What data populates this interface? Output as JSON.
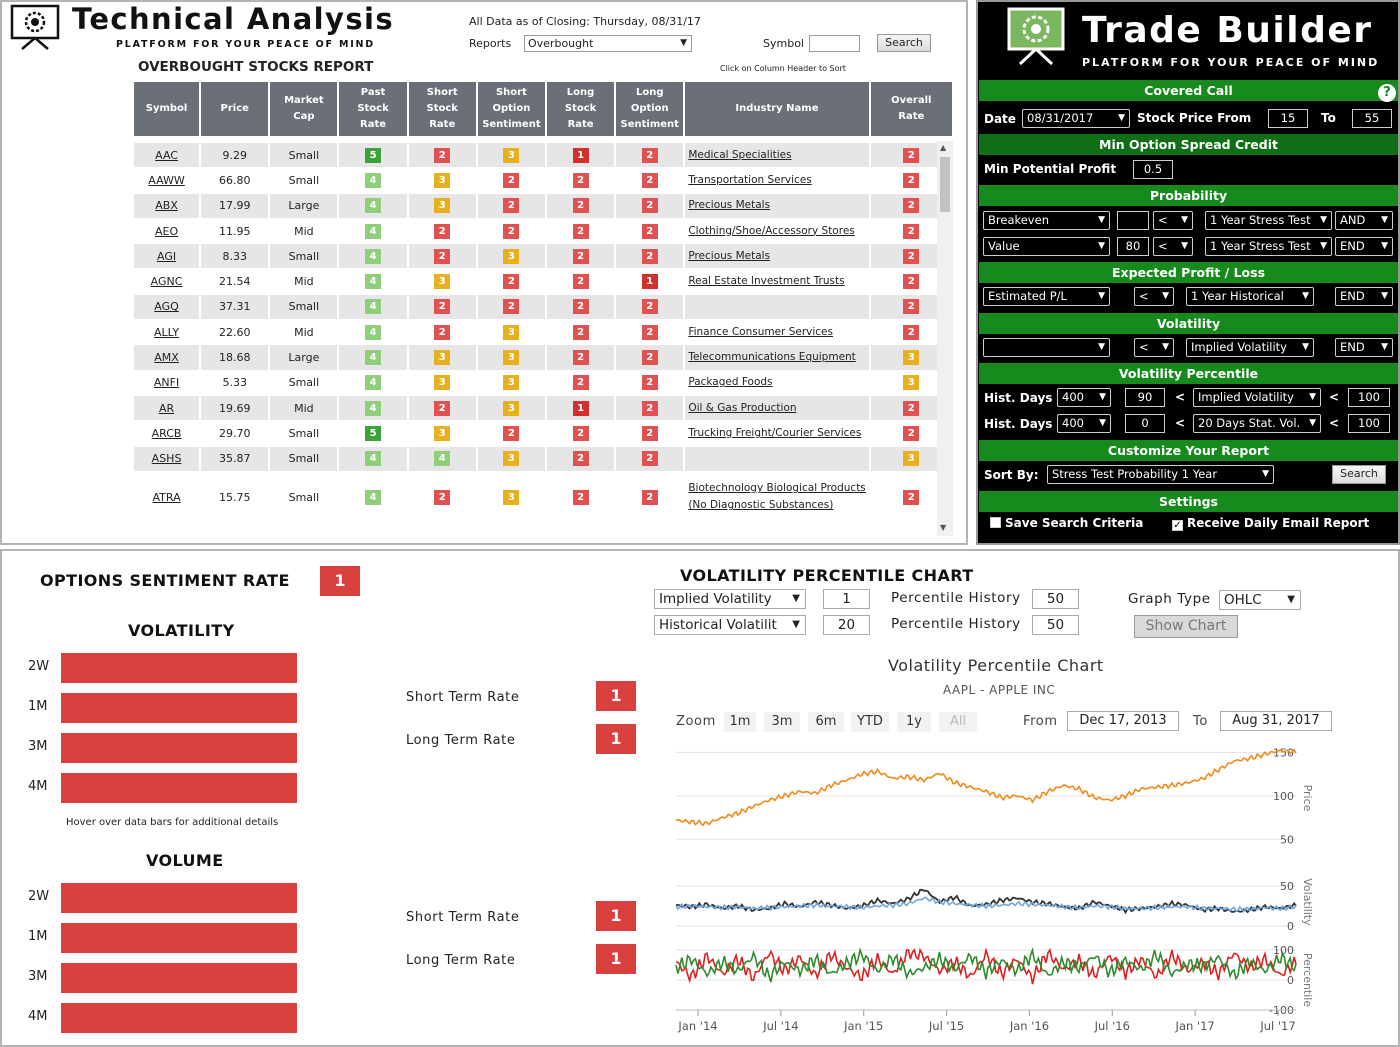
{
  "technical_analysis": {
    "title": "Technical Analysis",
    "subtitle": "PLATFORM FOR YOUR PEACE OF MIND",
    "as_of": "All Data as of Closing: Thursday, 08/31/17",
    "reports_label": "Reports",
    "report_selected": "Overbought",
    "symbol_label": "Symbol",
    "symbol_value": "",
    "search_label": "Search",
    "report_title": "OVERBOUGHT STOCKS REPORT",
    "sort_hint": "Click on Column Header to Sort",
    "columns": [
      "Symbol",
      "Price",
      "Market Cap",
      "Past Stock Rate",
      "Short Stock Rate",
      "Short Option Sentiment",
      "Long Stock Rate",
      "Long Option Sentiment",
      "Industry Name",
      "Overall Rate"
    ],
    "rows": [
      {
        "symbol": "AAC",
        "price": "9.29",
        "cap": "Small",
        "rates": [
          5,
          2,
          3,
          1,
          2
        ],
        "industry": "Medical Specialities",
        "overall": 2
      },
      {
        "symbol": "AAWW",
        "price": "66.80",
        "cap": "Small",
        "rates": [
          4,
          3,
          2,
          2,
          2
        ],
        "industry": "Transportation Services",
        "overall": 2
      },
      {
        "symbol": "ABX",
        "price": "17.99",
        "cap": "Large",
        "rates": [
          4,
          3,
          2,
          2,
          2
        ],
        "industry": "Precious Metals",
        "overall": 2
      },
      {
        "symbol": "AEO",
        "price": "11.95",
        "cap": "Mid",
        "rates": [
          4,
          2,
          2,
          2,
          2
        ],
        "industry": "Clothing/Shoe/Accessory Stores",
        "overall": 2
      },
      {
        "symbol": "AGI",
        "price": "8.33",
        "cap": "Small",
        "rates": [
          4,
          2,
          3,
          2,
          2
        ],
        "industry": "Precious Metals",
        "overall": 2
      },
      {
        "symbol": "AGNC",
        "price": "21.54",
        "cap": "Mid",
        "rates": [
          4,
          3,
          2,
          2,
          1
        ],
        "industry": "Real Estate Investment Trusts",
        "overall": 2
      },
      {
        "symbol": "AGQ",
        "price": "37.31",
        "cap": "Small",
        "rates": [
          4,
          2,
          2,
          2,
          2
        ],
        "industry": "",
        "overall": 2
      },
      {
        "symbol": "ALLY",
        "price": "22.60",
        "cap": "Mid",
        "rates": [
          4,
          2,
          3,
          2,
          2
        ],
        "industry": "Finance Consumer Services",
        "overall": 2
      },
      {
        "symbol": "AMX",
        "price": "18.68",
        "cap": "Large",
        "rates": [
          4,
          3,
          3,
          2,
          2
        ],
        "industry": "Telecommunications Equipment",
        "overall": 3
      },
      {
        "symbol": "ANFI",
        "price": "5.33",
        "cap": "Small",
        "rates": [
          4,
          3,
          3,
          2,
          2
        ],
        "industry": "Packaged Foods",
        "overall": 3
      },
      {
        "symbol": "AR",
        "price": "19.69",
        "cap": "Mid",
        "rates": [
          4,
          2,
          3,
          1,
          2
        ],
        "industry": "Oil & Gas Production",
        "overall": 2
      },
      {
        "symbol": "ARCB",
        "price": "29.70",
        "cap": "Small",
        "rates": [
          5,
          3,
          2,
          2,
          2
        ],
        "industry": "Trucking Freight/Courier Services",
        "overall": 2
      },
      {
        "symbol": "ASHS",
        "price": "35.87",
        "cap": "Small",
        "rates": [
          4,
          4,
          3,
          2,
          2
        ],
        "industry": "",
        "overall": 3
      },
      {
        "symbol": "ATRA",
        "price": "15.75",
        "cap": "Small",
        "rates": [
          4,
          2,
          3,
          2,
          2
        ],
        "industry": "Biotechnology Biological Products (No Diagnostic Substances)",
        "overall": 2
      }
    ]
  },
  "trade_builder": {
    "title": "Trade Builder",
    "subtitle": "PLATFORM FOR YOUR PEACE OF MIND",
    "covered_call": "Covered Call",
    "help": "?",
    "date_label": "Date",
    "date_value": "08/31/2017",
    "price_from_label": "Stock Price From",
    "price_from": "15",
    "to_label": "To",
    "price_to": "55",
    "min_spread_header": "Min Option Spread Credit",
    "min_profit_label": "Min Potential Profit",
    "min_profit": "0.5",
    "probability_header": "Probability",
    "prob_row1": {
      "field": "Breakeven",
      "value": "",
      "op": "<",
      "test": "1 Year Stress Test",
      "logic": "AND"
    },
    "prob_row2": {
      "field": "Value",
      "value": "80",
      "op": "<",
      "test": "1 Year Stress Test",
      "logic": "END"
    },
    "expected_header": "Expected Profit / Loss",
    "exp_row": {
      "field": "Estimated P/L",
      "op": "<",
      "period": "1 Year Historical",
      "logic": "END"
    },
    "volatility_header": "Volatility",
    "vol_row": {
      "field": "",
      "op": "<",
      "type": "Implied Volatility",
      "logic": "END"
    },
    "vol_pct_header": "Volatility Percentile",
    "hist_label": "Hist. Days",
    "hist_row1": {
      "days": "400",
      "value": "90",
      "op": "<",
      "type": "Implied Volatility",
      "op2": "<",
      "max": "100"
    },
    "hist_row2": {
      "days": "400",
      "value": "0",
      "op": "<",
      "type": "20 Days Stat. Vol.",
      "op2": "<",
      "max": "100"
    },
    "customize_header": "Customize Your Report",
    "sort_label": "Sort By:",
    "sort_value": "Stress Test Probability 1 Year",
    "search_label": "Search",
    "settings_header": "Settings",
    "save_criteria": "Save Search Criteria",
    "daily_email": "Receive Daily Email Report"
  },
  "options_sentiment": {
    "title": "OPTIONS SENTIMENT RATE",
    "rate": "1",
    "volatility_title": "VOLATILITY",
    "volume_title": "VOLUME",
    "periods": [
      "2W",
      "1M",
      "3M",
      "4M"
    ],
    "hover_hint": "Hover over data bars for additional details",
    "short_term_label": "Short Term Rate",
    "long_term_label": "Long Term Rate",
    "vol_short_rate": "1",
    "vol_long_rate": "1",
    "volume_short_rate": "1",
    "volume_long_rate": "1",
    "bar_color": "#d9413f"
  },
  "vol_chart_panel": {
    "title": "VOLATILITY PERCENTILE CHART",
    "row1": {
      "type": "Implied Volatility",
      "value": "1",
      "label": "Percentile History",
      "pct": "50"
    },
    "row2": {
      "type": "Historical Volatilit",
      "value": "20",
      "label": "Percentile History",
      "pct": "50"
    },
    "graph_type_label": "Graph Type",
    "graph_type": "OHLC",
    "show_chart": "Show Chart",
    "zoom_label": "Zoom",
    "zoom_options": [
      "1m",
      "3m",
      "6m",
      "YTD",
      "1y",
      "All"
    ],
    "from_label": "From",
    "from_date": "Dec 17, 2013",
    "to_label": "To",
    "to_date": "Aug 31, 2017"
  },
  "chart_data": {
    "type": "line",
    "title": "Volatility Percentile Chart",
    "subtitle": "AAPL - APPLE INC",
    "x_labels": [
      "Jan '14",
      "Jul '14",
      "Jan '15",
      "Jul '15",
      "Jan '16",
      "Jul '16",
      "Jan '17",
      "Jul '17"
    ],
    "panels": [
      {
        "ylabel": "Price",
        "yticks": [
          "150",
          "100",
          "50"
        ],
        "ylim": [
          40,
          155
        ],
        "series": [
          {
            "color": "#f08a1a",
            "values": [
              72,
              70,
              68,
              75,
              80,
              88,
              95,
              100,
              105,
              103,
              112,
              118,
              125,
              128,
              120,
              122,
              118,
              126,
              115,
              110,
              105,
              98,
              100,
              95,
              105,
              112,
              108,
              98,
              95,
              100,
              108,
              110,
              112,
              115,
              120,
              130,
              140,
              143,
              148,
              152,
              150
            ]
          }
        ]
      },
      {
        "ylabel": "Volatility",
        "yticks": [
          "50",
          "0"
        ],
        "ylim": [
          0,
          60
        ],
        "series": [
          {
            "color": "#333333",
            "values": [
              26,
              24,
              27,
              22,
              25,
              20,
              22,
              28,
              24,
              30,
              26,
              22,
              25,
              32,
              28,
              34,
              46,
              30,
              36,
              25,
              27,
              32,
              35,
              30,
              28,
              24,
              22,
              30,
              25,
              20,
              22,
              24,
              28,
              26,
              20,
              22,
              18,
              20,
              24,
              22,
              26
            ]
          },
          {
            "color": "#6fa8dc",
            "values": [
              24,
              25,
              24,
              23,
              24,
              22,
              23,
              24,
              25,
              26,
              25,
              24,
              23,
              25,
              26,
              28,
              35,
              30,
              28,
              26,
              25,
              26,
              28,
              27,
              26,
              24,
              23,
              25,
              24,
              22,
              22,
              23,
              24,
              24,
              22,
              22,
              21,
              21,
              23,
              22,
              24
            ]
          }
        ]
      },
      {
        "ylabel": "Percentile",
        "yticks": [
          "100",
          "0",
          "-100"
        ],
        "ylim": [
          -100,
          100
        ],
        "series": [
          {
            "color": "#e02020",
            "values": [
              60,
              10,
              80,
              20,
              70,
              5,
              90,
              30,
              75,
              15,
              85,
              40,
              10,
              70,
              20,
              95,
              80,
              30,
              60,
              10,
              85,
              20,
              70,
              5,
              90,
              35,
              65,
              15,
              80,
              25,
              70,
              10,
              85,
              30,
              60,
              20,
              90,
              40,
              70,
              15,
              60
            ]
          },
          {
            "color": "#2e8b2e",
            "values": [
              40,
              70,
              20,
              60,
              30,
              80,
              10,
              60,
              30,
              70,
              20,
              55,
              85,
              30,
              75,
              20,
              40,
              70,
              35,
              80,
              25,
              65,
              30,
              85,
              15,
              60,
              40,
              80,
              25,
              65,
              35,
              85,
              20,
              55,
              45,
              75,
              15,
              60,
              30,
              75,
              40
            ]
          }
        ]
      }
    ]
  }
}
